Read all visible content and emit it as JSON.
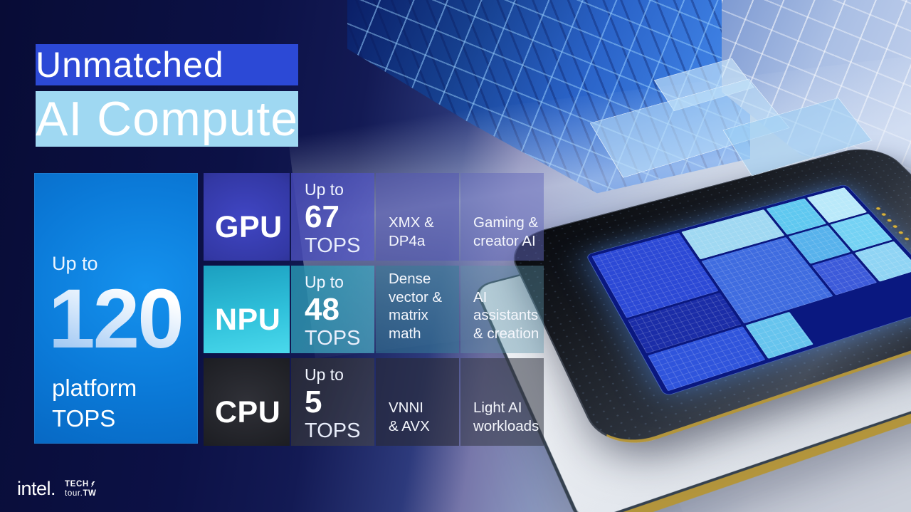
{
  "slide": {
    "title_line1": "Unmatched",
    "title_line2": "AI Compute"
  },
  "summary": {
    "prefix": "Up to",
    "value": "120",
    "suffix": "platform\nTOPS"
  },
  "engines": [
    {
      "name": "GPU",
      "tops_prefix": "Up to",
      "tops_value": "67",
      "tops_unit": "TOPS",
      "tech": "XMX &\nDP4a",
      "use": "Gaming &\ncreator AI"
    },
    {
      "name": "NPU",
      "tops_prefix": "Up to",
      "tops_value": "48",
      "tops_unit": "TOPS",
      "tech": "Dense\nvector &\nmatrix math",
      "use": "AI\nassistants\n& creation"
    },
    {
      "name": "CPU",
      "tops_prefix": "Up to",
      "tops_value": "5",
      "tops_unit": "TOPS",
      "tech": "VNNI\n& AVX",
      "use": "Light AI\nworkloads"
    }
  ],
  "footer": {
    "brand": "intel.",
    "event_line1": "TECH",
    "event_line2_regular": "tour.",
    "event_line2_bold": "TW"
  },
  "colors": {
    "background_navy": "#0c1146",
    "summary_blue": "#0b7ad8",
    "gpu_blue": "#3338a4",
    "npu_cyan": "#2fc0da",
    "cpu_dark": "#1b1c21",
    "cube_blue": "#2a63c8",
    "text_white": "#ffffff"
  }
}
